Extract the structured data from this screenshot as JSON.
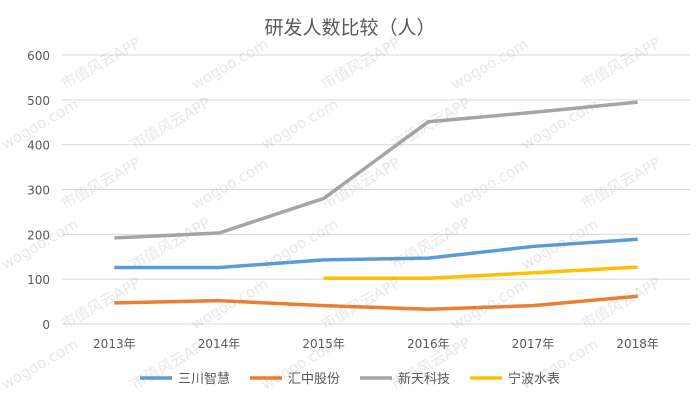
{
  "chart_data": {
    "type": "line",
    "title": "研发人数比较（人）",
    "xlabel": "",
    "ylabel": "",
    "categories": [
      "2013年",
      "2014年",
      "2015年",
      "2016年",
      "2017年",
      "2018年"
    ],
    "ylim": [
      0,
      600
    ],
    "yticks": [
      "0",
      "100",
      "200",
      "300",
      "400",
      "500",
      "600"
    ],
    "grid": true,
    "legend_position": "bottom",
    "series": [
      {
        "name": "三川智慧",
        "color": "#5b9bd5",
        "values": [
          126,
          126,
          143,
          147,
          173,
          189
        ]
      },
      {
        "name": "汇中股份",
        "color": "#ed7d31",
        "values": [
          47,
          52,
          41,
          33,
          41,
          62
        ]
      },
      {
        "name": "新天科技",
        "color": "#a5a5a5",
        "values": [
          192,
          203,
          280,
          451,
          472,
          495
        ]
      },
      {
        "name": "宁波水表",
        "color": "#ffc000",
        "values": [
          null,
          null,
          102,
          102,
          114,
          127
        ]
      }
    ]
  },
  "watermark": [
    "市值风云APP",
    "wogoo.com"
  ]
}
